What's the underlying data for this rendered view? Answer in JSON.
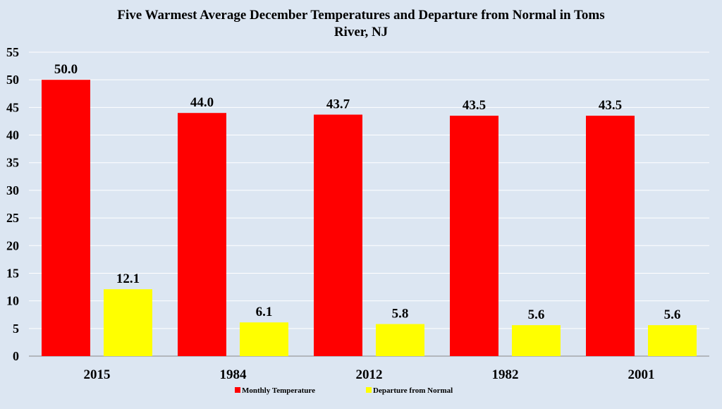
{
  "chart_data": {
    "type": "bar",
    "title": "Five Warmest Average December Temperatures and Departure from Normal in Toms River, NJ",
    "title_lines": [
      "Five Warmest Average December Temperatures and Departure from Normal in Toms",
      "River, NJ"
    ],
    "categories": [
      "2015",
      "1984",
      "2012",
      "1982",
      "2001"
    ],
    "series": [
      {
        "name": "Monthly Temperature",
        "color": "#ff0000",
        "values": [
          50.0,
          44.0,
          43.7,
          43.5,
          43.5
        ],
        "labels": [
          "50.0",
          "44.0",
          "43.7",
          "43.5",
          "43.5"
        ]
      },
      {
        "name": "Departure from Normal",
        "color": "#ffff00",
        "values": [
          12.1,
          6.1,
          5.8,
          5.6,
          5.6
        ],
        "labels": [
          "12.1",
          "6.1",
          "5.8",
          "5.6",
          "5.6"
        ]
      }
    ],
    "ylim": [
      0,
      55
    ],
    "yticks": [
      0,
      5,
      10,
      15,
      20,
      25,
      30,
      35,
      40,
      45,
      50,
      55
    ],
    "xlabel": "",
    "ylabel": "",
    "grid": true,
    "legend_position": "bottom-center",
    "background_color": "#dce6f2"
  }
}
